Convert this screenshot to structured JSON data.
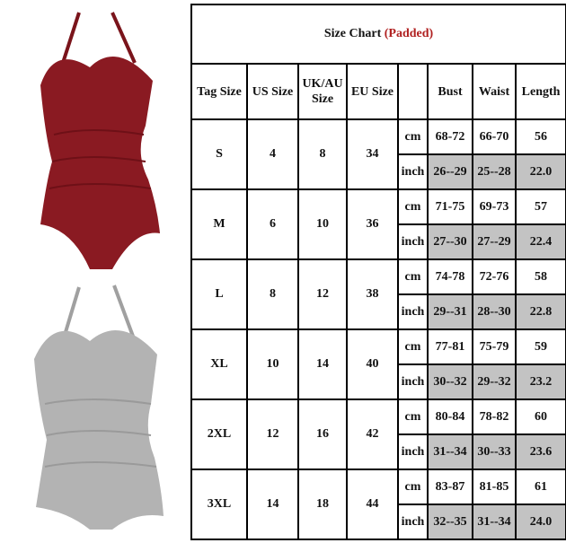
{
  "title": {
    "text": "Size Chart",
    "accent": "(Padded)",
    "accent_color": "#b02020"
  },
  "headers": [
    "Tag Size",
    "US Size",
    "UK/AU Size",
    "EU Size",
    "",
    "Bust",
    "Waist",
    "Length"
  ],
  "units": [
    "cm",
    "inch"
  ],
  "rows": [
    {
      "tag": "S",
      "us": "4",
      "uk": "8",
      "eu": "34",
      "cm": [
        "68-72",
        "66-70",
        "56"
      ],
      "inch": [
        "26--29",
        "25--28",
        "22.0"
      ]
    },
    {
      "tag": "M",
      "us": "6",
      "uk": "10",
      "eu": "36",
      "cm": [
        "71-75",
        "69-73",
        "57"
      ],
      "inch": [
        "27--30",
        "27--29",
        "22.4"
      ]
    },
    {
      "tag": "L",
      "us": "8",
      "uk": "12",
      "eu": "38",
      "cm": [
        "74-78",
        "72-76",
        "58"
      ],
      "inch": [
        "29--31",
        "28--30",
        "22.8"
      ]
    },
    {
      "tag": "XL",
      "us": "10",
      "uk": "14",
      "eu": "40",
      "cm": [
        "77-81",
        "75-79",
        "59"
      ],
      "inch": [
        "30--32",
        "29--32",
        "23.2"
      ]
    },
    {
      "tag": "2XL",
      "us": "12",
      "uk": "16",
      "eu": "42",
      "cm": [
        "80-84",
        "78-82",
        "60"
      ],
      "inch": [
        "31--34",
        "30--33",
        "23.6"
      ]
    },
    {
      "tag": "3XL",
      "us": "14",
      "uk": "18",
      "eu": "44",
      "cm": [
        "83-87",
        "81-85",
        "61"
      ],
      "inch": [
        "32--35",
        "31--34",
        "24.0"
      ]
    }
  ],
  "product_colors": [
    "#8a1a22",
    "#b3b3b3"
  ]
}
